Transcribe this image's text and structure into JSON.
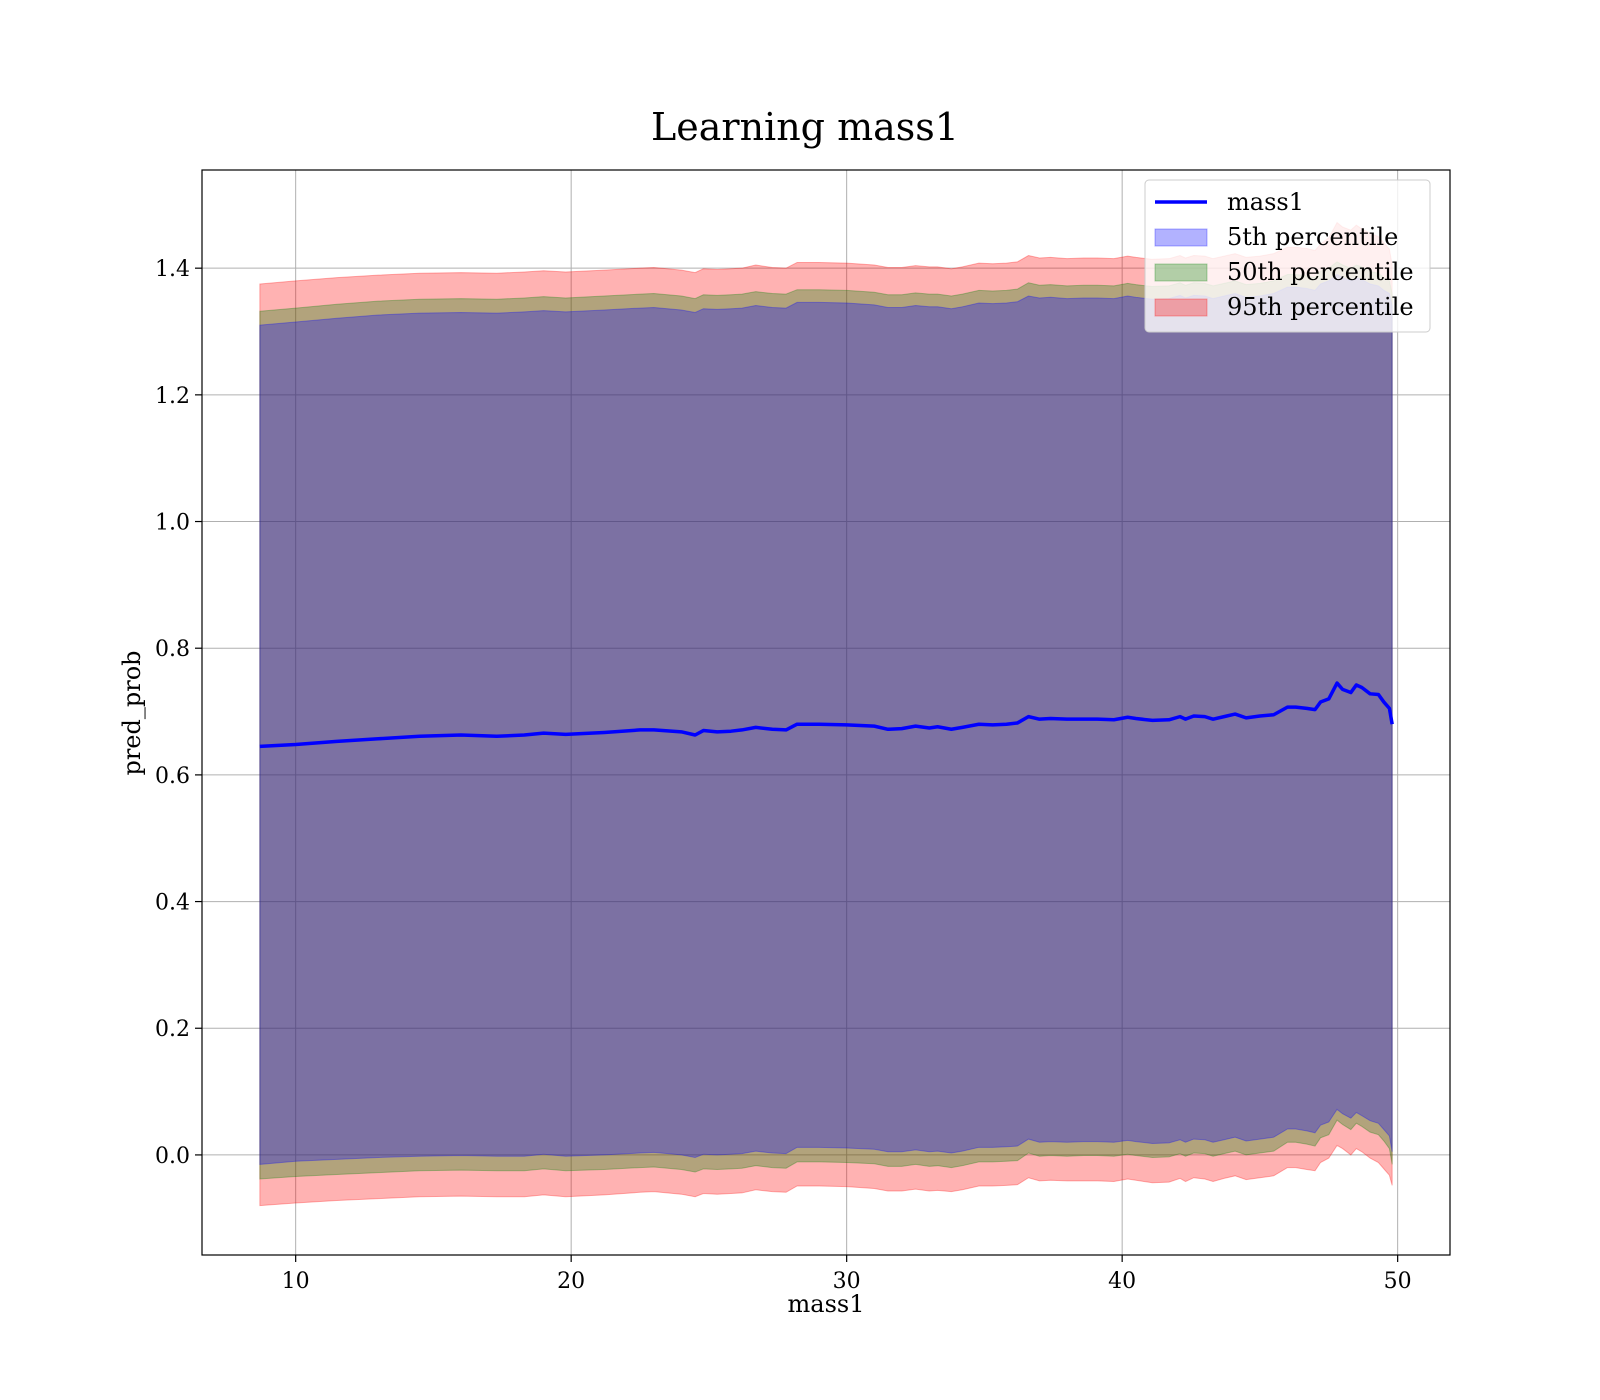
{
  "chart_data": {
    "type": "area",
    "title": "Learning mass1",
    "xlabel": "mass1",
    "ylabel": "pred_prob",
    "xlim": [
      6.6,
      51.9
    ],
    "ylim": [
      -0.158,
      1.555
    ],
    "xticks": [
      10,
      20,
      30,
      40,
      50
    ],
    "yticks": [
      0.0,
      0.2,
      0.4,
      0.6,
      0.8,
      1.0,
      1.2,
      1.4
    ],
    "grid": true,
    "legend": "top-right",
    "x": [
      8.7,
      10,
      11.5,
      13,
      14.5,
      16,
      17.3,
      18.3,
      19,
      19.8,
      21.2,
      22.5,
      23,
      24,
      24.5,
      24.8,
      25.3,
      25.8,
      26.2,
      26.7,
      27.3,
      27.8,
      28.2,
      29,
      30,
      31,
      31.5,
      32,
      32.5,
      33,
      33.3,
      33.8,
      34.2,
      34.8,
      35.3,
      35.8,
      36.2,
      36.6,
      37,
      37.4,
      38,
      38.6,
      39.1,
      39.7,
      40.2,
      40.5,
      41.1,
      41.7,
      42.1,
      42.3,
      42.6,
      43,
      43.3,
      43.7,
      44.1,
      44.5,
      45,
      45.5,
      46,
      46.3,
      46.7,
      47,
      47.2,
      47.5,
      47.8,
      48,
      48.3,
      48.5,
      48.7,
      49,
      49.3,
      49.5,
      49.7,
      49.8
    ],
    "series": [
      {
        "name": "mass1",
        "kind": "line",
        "color": "#0000ff",
        "values": [
          0.645,
          0.648,
          0.653,
          0.657,
          0.661,
          0.663,
          0.661,
          0.663,
          0.666,
          0.664,
          0.667,
          0.671,
          0.671,
          0.668,
          0.663,
          0.67,
          0.668,
          0.669,
          0.671,
          0.675,
          0.672,
          0.671,
          0.68,
          0.68,
          0.679,
          0.677,
          0.672,
          0.673,
          0.677,
          0.674,
          0.676,
          0.672,
          0.675,
          0.68,
          0.679,
          0.68,
          0.682,
          0.692,
          0.688,
          0.689,
          0.688,
          0.688,
          0.688,
          0.687,
          0.691,
          0.689,
          0.686,
          0.687,
          0.692,
          0.688,
          0.693,
          0.692,
          0.688,
          0.692,
          0.696,
          0.69,
          0.693,
          0.695,
          0.707,
          0.707,
          0.705,
          0.703,
          0.715,
          0.72,
          0.745,
          0.735,
          0.73,
          0.742,
          0.738,
          0.728,
          0.727,
          0.715,
          0.705,
          0.68
        ]
      },
      {
        "name": "5th percentile",
        "kind": "band",
        "color": "#0000ff",
        "lower": [
          -0.015,
          -0.01,
          -0.007,
          -0.004,
          -0.002,
          -0.001,
          -0.002,
          -0.002,
          0.001,
          -0.002,
          0.0,
          0.003,
          0.004,
          0.0,
          -0.004,
          0.001,
          0.0,
          0.001,
          0.002,
          0.006,
          0.003,
          0.002,
          0.012,
          0.012,
          0.011,
          0.009,
          0.005,
          0.005,
          0.008,
          0.005,
          0.006,
          0.003,
          0.006,
          0.012,
          0.012,
          0.013,
          0.014,
          0.025,
          0.02,
          0.021,
          0.02,
          0.021,
          0.021,
          0.02,
          0.023,
          0.021,
          0.018,
          0.019,
          0.024,
          0.02,
          0.025,
          0.024,
          0.02,
          0.024,
          0.028,
          0.022,
          0.025,
          0.028,
          0.041,
          0.041,
          0.038,
          0.035,
          0.047,
          0.052,
          0.072,
          0.065,
          0.058,
          0.067,
          0.062,
          0.054,
          0.05,
          0.04,
          0.03,
          0.005
        ],
        "upper": [
          1.31,
          1.315,
          1.321,
          1.326,
          1.329,
          1.33,
          1.329,
          1.331,
          1.333,
          1.331,
          1.334,
          1.337,
          1.338,
          1.334,
          1.33,
          1.336,
          1.335,
          1.336,
          1.337,
          1.341,
          1.338,
          1.337,
          1.346,
          1.346,
          1.345,
          1.342,
          1.338,
          1.338,
          1.341,
          1.339,
          1.339,
          1.336,
          1.339,
          1.345,
          1.344,
          1.345,
          1.347,
          1.356,
          1.353,
          1.354,
          1.352,
          1.353,
          1.353,
          1.352,
          1.356,
          1.354,
          1.351,
          1.352,
          1.357,
          1.353,
          1.357,
          1.356,
          1.352,
          1.356,
          1.36,
          1.354,
          1.356,
          1.36,
          1.37,
          1.37,
          1.368,
          1.365,
          1.375,
          1.38,
          1.39,
          1.385,
          1.38,
          1.385,
          1.382,
          1.375,
          1.372,
          1.365,
          1.36,
          1.34
        ]
      },
      {
        "name": "50th percentile",
        "kind": "band",
        "color": "#008000",
        "lower": [
          -0.038,
          -0.034,
          -0.031,
          -0.028,
          -0.025,
          -0.024,
          -0.025,
          -0.025,
          -0.022,
          -0.025,
          -0.023,
          -0.02,
          -0.019,
          -0.023,
          -0.027,
          -0.022,
          -0.023,
          -0.022,
          -0.021,
          -0.017,
          -0.02,
          -0.021,
          -0.011,
          -0.011,
          -0.012,
          -0.014,
          -0.018,
          -0.018,
          -0.015,
          -0.018,
          -0.017,
          -0.02,
          -0.017,
          -0.011,
          -0.011,
          -0.01,
          -0.009,
          0.003,
          -0.002,
          -0.001,
          -0.002,
          -0.001,
          -0.001,
          -0.002,
          0.001,
          -0.001,
          -0.004,
          -0.003,
          0.002,
          -0.002,
          0.003,
          0.002,
          -0.002,
          0.002,
          0.006,
          0.0,
          0.003,
          0.006,
          0.02,
          0.02,
          0.017,
          0.014,
          0.027,
          0.032,
          0.055,
          0.048,
          0.04,
          0.05,
          0.045,
          0.036,
          0.032,
          0.022,
          0.01,
          -0.015
        ],
        "upper": [
          1.332,
          1.337,
          1.343,
          1.348,
          1.351,
          1.352,
          1.351,
          1.353,
          1.355,
          1.353,
          1.356,
          1.359,
          1.36,
          1.356,
          1.352,
          1.358,
          1.357,
          1.358,
          1.359,
          1.363,
          1.36,
          1.359,
          1.366,
          1.366,
          1.365,
          1.362,
          1.358,
          1.358,
          1.361,
          1.359,
          1.359,
          1.356,
          1.359,
          1.365,
          1.364,
          1.365,
          1.367,
          1.377,
          1.373,
          1.374,
          1.372,
          1.373,
          1.373,
          1.372,
          1.376,
          1.374,
          1.371,
          1.372,
          1.377,
          1.373,
          1.377,
          1.376,
          1.372,
          1.376,
          1.38,
          1.374,
          1.376,
          1.38,
          1.39,
          1.39,
          1.388,
          1.385,
          1.395,
          1.4,
          1.41,
          1.405,
          1.4,
          1.405,
          1.402,
          1.395,
          1.392,
          1.385,
          1.38,
          1.36
        ]
      },
      {
        "name": "95th percentile",
        "kind": "band",
        "color": "#ff0000",
        "lower": [
          -0.08,
          -0.076,
          -0.072,
          -0.069,
          -0.066,
          -0.065,
          -0.066,
          -0.066,
          -0.063,
          -0.066,
          -0.063,
          -0.059,
          -0.058,
          -0.062,
          -0.066,
          -0.061,
          -0.062,
          -0.061,
          -0.06,
          -0.055,
          -0.058,
          -0.059,
          -0.049,
          -0.049,
          -0.05,
          -0.053,
          -0.057,
          -0.057,
          -0.054,
          -0.057,
          -0.056,
          -0.058,
          -0.055,
          -0.049,
          -0.049,
          -0.048,
          -0.047,
          -0.036,
          -0.041,
          -0.04,
          -0.041,
          -0.041,
          -0.041,
          -0.042,
          -0.038,
          -0.04,
          -0.044,
          -0.043,
          -0.037,
          -0.042,
          -0.036,
          -0.038,
          -0.042,
          -0.037,
          -0.033,
          -0.039,
          -0.036,
          -0.033,
          -0.02,
          -0.02,
          -0.023,
          -0.025,
          -0.012,
          -0.005,
          0.015,
          0.01,
          0.0,
          0.01,
          0.005,
          -0.005,
          -0.012,
          -0.022,
          -0.032,
          -0.048
        ],
        "upper": [
          1.375,
          1.38,
          1.385,
          1.389,
          1.392,
          1.393,
          1.392,
          1.394,
          1.396,
          1.394,
          1.397,
          1.4,
          1.401,
          1.397,
          1.393,
          1.399,
          1.398,
          1.399,
          1.4,
          1.405,
          1.401,
          1.4,
          1.409,
          1.409,
          1.408,
          1.405,
          1.401,
          1.401,
          1.404,
          1.402,
          1.402,
          1.399,
          1.402,
          1.408,
          1.407,
          1.408,
          1.41,
          1.42,
          1.416,
          1.417,
          1.415,
          1.416,
          1.416,
          1.415,
          1.419,
          1.417,
          1.414,
          1.415,
          1.42,
          1.416,
          1.42,
          1.419,
          1.415,
          1.419,
          1.423,
          1.417,
          1.419,
          1.423,
          1.433,
          1.433,
          1.431,
          1.428,
          1.438,
          1.448,
          1.472,
          1.465,
          1.46,
          1.468,
          1.462,
          1.455,
          1.45,
          1.44,
          1.43,
          1.405
        ]
      }
    ]
  }
}
